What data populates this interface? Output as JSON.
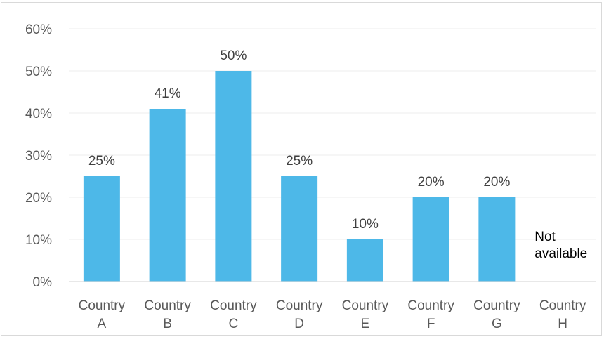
{
  "chart_data": {
    "type": "bar",
    "categories": [
      [
        "Country",
        "A"
      ],
      [
        "Country",
        "B"
      ],
      [
        "Country",
        "C"
      ],
      [
        "Country",
        "D"
      ],
      [
        "Country",
        "E"
      ],
      [
        "Country",
        "F"
      ],
      [
        "Country",
        "G"
      ],
      [
        "Country",
        "H"
      ]
    ],
    "values": [
      0.25,
      0.41,
      0.5,
      0.25,
      0.1,
      0.2,
      0.2,
      null
    ],
    "data_labels": [
      "25%",
      "41%",
      "50%",
      "25%",
      "10%",
      "20%",
      "20%",
      ""
    ],
    "annotations": [
      {
        "category_index": 7,
        "lines": [
          "Not",
          "available"
        ]
      }
    ],
    "ylim": [
      0,
      0.6
    ],
    "yticks": [
      0,
      0.1,
      0.2,
      0.3,
      0.4,
      0.5,
      0.6
    ],
    "ytick_labels": [
      "0%",
      "10%",
      "20%",
      "30%",
      "40%",
      "50%",
      "60%"
    ],
    "title": "",
    "xlabel": "",
    "ylabel": "",
    "grid": true,
    "legend": false,
    "bar_color": "#4db8e8",
    "grid_color": "#eeeeee",
    "axis_color": "#d9d9d9"
  }
}
